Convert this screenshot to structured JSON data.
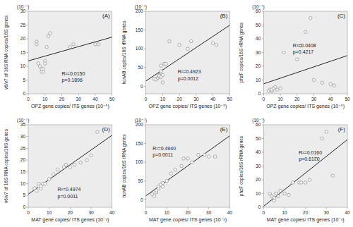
{
  "chart_data": [
    {
      "type": "scatter",
      "grid": false,
      "xlabel": "OPZ gene copies/ ITS genes (10⁻⁵)",
      "ylabel": "v6/v7 of 16S RNA copies/16S genes",
      "y_label_exponent": "(10⁻⁷)",
      "panel_label": "(A)",
      "annotations": [
        "R²=0.0150",
        "p=0.1896"
      ],
      "xlim": [
        0,
        50
      ],
      "ylim": [
        0,
        30
      ],
      "xticks": [
        0,
        10,
        20,
        30,
        40,
        50
      ],
      "yticks": [
        0,
        5,
        10,
        15,
        20,
        25,
        30
      ],
      "series": [
        {
          "type": "scatter",
          "color": "#888888",
          "x": [
            5,
            5,
            6,
            7,
            8,
            8,
            9,
            9,
            10,
            10,
            11,
            12,
            13,
            25,
            27,
            40,
            42
          ],
          "values": [
            18,
            19,
            11,
            10,
            9,
            8,
            8,
            9,
            12,
            11,
            17,
            21,
            22,
            17,
            18,
            18,
            18
          ]
        },
        {
          "type": "line",
          "color": "#222222",
          "x": [
            0,
            50
          ],
          "values": [
            11.9623,
            20.594
          ]
        }
      ]
    },
    {
      "type": "scatter",
      "grid": false,
      "xlabel": "OPZ gene copies/ ITS genes (10⁻⁵)",
      "ylabel": "hcnAB copies/16S rRNA genes",
      "y_label_exponent": "(10⁻⁷)",
      "panel_label": "(B)",
      "annotations": [
        "R²=0.4923",
        "p=0.0012"
      ],
      "xlim": [
        0,
        50
      ],
      "ylim": [
        -20,
        200
      ],
      "xticks": [
        0,
        10,
        20,
        30,
        40,
        50
      ],
      "yticks": [
        0,
        50,
        100,
        150,
        200
      ],
      "series": [
        {
          "type": "scatter",
          "color": "#888888",
          "x": [
            5,
            6,
            7,
            8,
            8,
            8,
            9,
            9,
            9,
            10,
            10,
            11,
            12,
            14,
            20,
            25,
            27,
            40,
            42
          ],
          "values": [
            20,
            18,
            22,
            30,
            25,
            28,
            55,
            40,
            25,
            30,
            10,
            60,
            60,
            120,
            110,
            100,
            120,
            115,
            110
          ]
        },
        {
          "type": "line",
          "color": "#222222",
          "x": [
            0,
            50
          ],
          "values": [
            13.9015,
            162.807
          ]
        }
      ]
    },
    {
      "type": "scatter",
      "grid": false,
      "xlabel": "OPZ gene copies/ ITS genes (10⁻⁵)",
      "ylabel": "phzF copies/16S rRNA genes",
      "y_label_exponent": "(10⁻⁷)",
      "panel_label": "(C)",
      "annotations": [
        "R²=0.0408",
        "p=0.4217"
      ],
      "xlim": [
        0,
        50
      ],
      "ylim": [
        0,
        60
      ],
      "xticks": [
        0,
        10,
        20,
        30,
        40,
        50
      ],
      "yticks": [
        0,
        10,
        20,
        30,
        40,
        50,
        60
      ],
      "series": [
        {
          "type": "scatter",
          "color": "#888888",
          "x": [
            3,
            4,
            5,
            5,
            6,
            7,
            8,
            10,
            12,
            20,
            22,
            25,
            28,
            30,
            35,
            40,
            42
          ],
          "values": [
            2,
            3,
            2,
            3,
            4,
            5,
            3,
            4,
            30,
            25,
            35,
            45,
            55,
            10,
            8,
            7,
            6
          ]
        },
        {
          "type": "line",
          "color": "#222222",
          "x": [
            0,
            50
          ],
          "values": [
            7.2321,
            27.771
          ]
        }
      ]
    },
    {
      "type": "scatter",
      "grid": false,
      "xlabel": "MAT gene copies/ ITS genes (10⁻³)",
      "ylabel": "v6/v7 of 16S RNA copies/16S genes",
      "y_label_exponent": "(10⁻⁷)",
      "panel_label": "(D)",
      "annotations": [
        "R²=0.4974",
        "p=0.0011"
      ],
      "xlim": [
        0,
        40
      ],
      "ylim": [
        0,
        35
      ],
      "xticks": [
        0,
        10,
        20,
        30,
        40
      ],
      "yticks": [
        0,
        5,
        10,
        15,
        20,
        25,
        30,
        35
      ],
      "series": [
        {
          "type": "scatter",
          "color": "#888888",
          "x": [
            3,
            4,
            5,
            5,
            6,
            6,
            7,
            8,
            10,
            12,
            14,
            17,
            18,
            20,
            22,
            25,
            28,
            30,
            33
          ],
          "values": [
            8,
            7,
            9,
            10,
            8,
            9,
            10,
            10,
            12,
            14,
            16,
            17,
            18,
            17,
            18,
            19,
            20,
            22,
            32
          ]
        },
        {
          "type": "line",
          "color": "#222222",
          "x": [
            0,
            40
          ],
          "values": [
            5.5456,
            30.5469
          ]
        }
      ]
    },
    {
      "type": "scatter",
      "grid": false,
      "xlabel": "MAT gene copies/ ITS genes (10⁻³)",
      "ylabel": "hcnAB copies/16S rRNA genes",
      "y_label_exponent": "(10⁻⁷)",
      "panel_label": "(E)",
      "annotations": [
        "R²=0.4940",
        "p=0.0011"
      ],
      "xlim": [
        0,
        40
      ],
      "ylim": [
        -20,
        200
      ],
      "xticks": [
        0,
        10,
        20,
        30,
        40
      ],
      "yticks": [
        0,
        50,
        100,
        150,
        200
      ],
      "series": [
        {
          "type": "scatter",
          "color": "#888888",
          "x": [
            3,
            4,
            5,
            5,
            6,
            6,
            7,
            8,
            8,
            10,
            12,
            14,
            17,
            18,
            20,
            22,
            25,
            28,
            30,
            33
          ],
          "values": [
            15,
            10,
            20,
            25,
            30,
            35,
            40,
            45,
            35,
            50,
            70,
            80,
            90,
            110,
            110,
            100,
            120,
            120,
            115,
            115
          ]
        },
        {
          "type": "line",
          "color": "#222222",
          "x": [
            0,
            40
          ],
          "values": [
            10.5956,
            170.4658
          ]
        }
      ]
    },
    {
      "type": "scatter",
      "grid": false,
      "xlabel": "MAT gene copies/ ITS genes (10⁻³)",
      "ylabel": "phzF copies/16S rRNA genes",
      "y_label_exponent": "(10⁻⁷)",
      "panel_label": "(F)",
      "annotations": [
        "R²=0.0160",
        "p=0.6170"
      ],
      "xlim": [
        0,
        40
      ],
      "ylim": [
        0,
        60
      ],
      "xticks": [
        0,
        10,
        20,
        30,
        40
      ],
      "yticks": [
        0,
        10,
        20,
        30,
        40,
        50,
        60
      ],
      "series": [
        {
          "type": "scatter",
          "color": "#888888",
          "x": [
            3,
            4,
            5,
            5,
            6,
            6,
            7,
            8,
            10,
            12,
            14,
            17,
            18,
            20,
            22,
            25,
            28,
            30,
            33
          ],
          "values": [
            10,
            8,
            5,
            7,
            10,
            10,
            8,
            12,
            10,
            9,
            18,
            18,
            18,
            18,
            20,
            35,
            50,
            55,
            23
          ]
        },
        {
          "type": "line",
          "color": "#222222",
          "x": [
            0,
            40
          ],
          "values": [
            0.7054,
            49.1445
          ]
        }
      ]
    }
  ]
}
